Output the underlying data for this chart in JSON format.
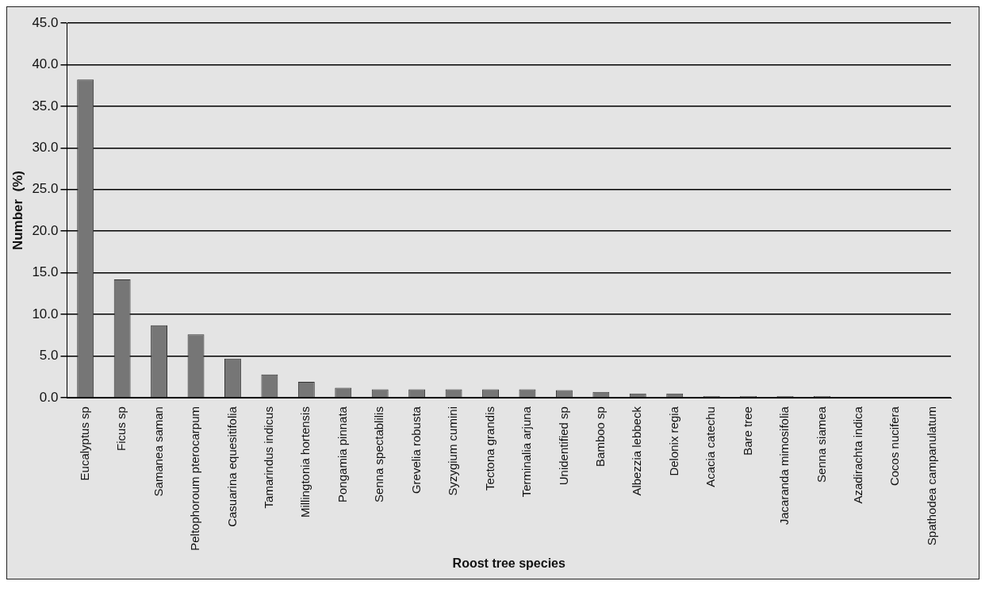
{
  "chart_data": {
    "type": "bar",
    "xlabel": "Roost tree species",
    "ylabel": "Number  (%)",
    "categories": [
      "Eucalyptus sp",
      "Ficus sp",
      "Samanea saman",
      "Peltophoroum pterocarpum",
      "Casuarina equesitifolia",
      "Tamarindus indicus",
      "Millingtonia hortensis",
      "Pongamia pinnata",
      "Senna spectablilis",
      "Grevelia robusta",
      "Syzygium cumini",
      "Tectona grandis",
      "Terminalia arjuna",
      "Unidentified sp",
      "Bamboo sp",
      "Albezzia lebbeck",
      "Delonix regia",
      "Acacia catechu",
      "Bare tree",
      "Jacaranda mimosifolia",
      "Senna siamea",
      "Azadirachta indica",
      "Cocos nucifera",
      "Spathodea campanulatum"
    ],
    "values": [
      38.2,
      14.2,
      8.7,
      7.6,
      4.7,
      2.8,
      1.9,
      1.2,
      1.0,
      1.0,
      1.0,
      1.0,
      1.0,
      0.9,
      0.7,
      0.5,
      0.5,
      0.2,
      0.2,
      0.2,
      0.2,
      null,
      null,
      null
    ],
    "color": "#767676",
    "ylim": [
      0,
      45
    ],
    "yticks": [
      {
        "value": 0,
        "label": "0.0"
      },
      {
        "value": 5,
        "label": "5.0"
      },
      {
        "value": 10,
        "label": "10.0"
      },
      {
        "value": 15,
        "label": "15.0"
      },
      {
        "value": 20,
        "label": "20.0"
      },
      {
        "value": 25,
        "label": "25.0"
      },
      {
        "value": 30,
        "label": "30.0"
      },
      {
        "value": 35,
        "label": "35.0"
      },
      {
        "value": 40,
        "label": "40.0"
      },
      {
        "value": 45,
        "label": "45.0"
      }
    ],
    "grid": "y",
    "legend": false
  }
}
